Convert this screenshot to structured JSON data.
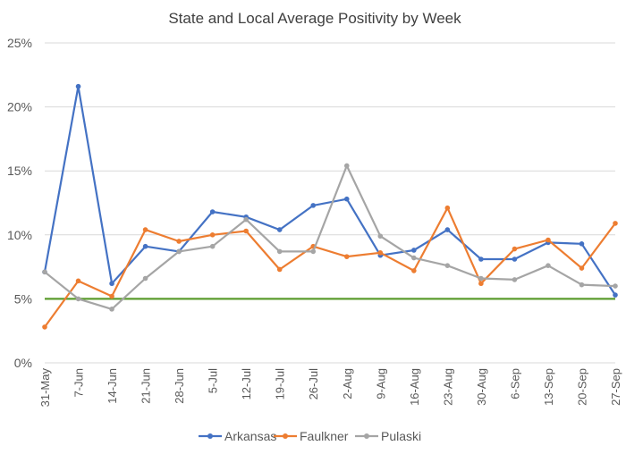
{
  "chart_data": {
    "type": "line",
    "title": "State and Local Average Positivity by Week",
    "categories": [
      "31-May",
      "7-Jun",
      "14-Jun",
      "21-Jun",
      "28-Jun",
      "5-Jul",
      "12-Jul",
      "19-Jul",
      "26-Jul",
      "2-Aug",
      "9-Aug",
      "16-Aug",
      "23-Aug",
      "30-Aug",
      "6-Sep",
      "13-Sep",
      "20-Sep",
      "27-Sep"
    ],
    "y_ticks": [
      "0%",
      "5%",
      "10%",
      "15%",
      "20%",
      "25%"
    ],
    "ylim": [
      0,
      25
    ],
    "y_unit": "percent",
    "grid": "horizontal",
    "legend_position": "bottom",
    "reference_line": {
      "value": 5,
      "color": "#5b9b2e"
    },
    "series": [
      {
        "name": "Arkansas",
        "color": "#4472c4",
        "values": [
          7.1,
          21.6,
          6.2,
          9.1,
          8.7,
          11.8,
          11.4,
          10.4,
          12.3,
          12.8,
          8.4,
          8.8,
          10.4,
          8.1,
          8.1,
          9.4,
          9.3,
          5.3
        ]
      },
      {
        "name": "Faulkner",
        "color": "#ed7d31",
        "values": [
          2.8,
          6.4,
          5.2,
          10.4,
          9.5,
          10.0,
          10.3,
          7.3,
          9.1,
          8.3,
          8.6,
          7.2,
          12.1,
          6.2,
          8.9,
          9.6,
          7.4,
          10.9
        ]
      },
      {
        "name": "Pulaski",
        "color": "#a5a5a5",
        "values": [
          7.1,
          5.0,
          4.2,
          6.6,
          8.7,
          9.1,
          11.2,
          8.7,
          8.7,
          15.4,
          9.9,
          8.2,
          7.6,
          6.6,
          6.5,
          7.6,
          6.1,
          6.0
        ]
      }
    ]
  }
}
